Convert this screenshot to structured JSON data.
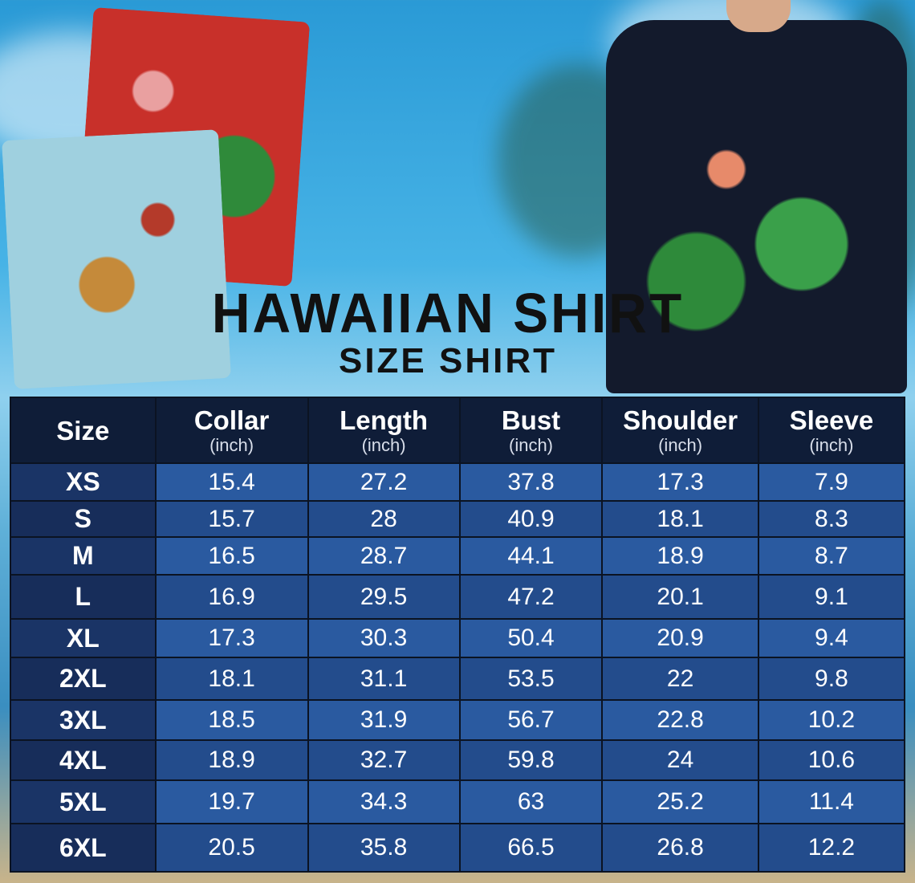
{
  "title": "HAWAIIAN SHIRT",
  "subtitle": "SIZE SHIRT",
  "table": {
    "headers": [
      {
        "label": "Size",
        "unit": ""
      },
      {
        "label": "Collar",
        "unit": "(inch)"
      },
      {
        "label": "Length",
        "unit": "(inch)"
      },
      {
        "label": "Bust",
        "unit": "(inch)"
      },
      {
        "label": "Shoulder",
        "unit": "(inch)"
      },
      {
        "label": "Sleeve",
        "unit": "(inch)"
      }
    ],
    "rows": [
      [
        "XS",
        "15.4",
        "27.2",
        "37.8",
        "17.3",
        "7.9"
      ],
      [
        "S",
        "15.7",
        "28",
        "40.9",
        "18.1",
        "8.3"
      ],
      [
        "M",
        "16.5",
        "28.7",
        "44.1",
        "18.9",
        "8.7"
      ],
      [
        "L",
        "16.9",
        "29.5",
        "47.2",
        "20.1",
        "9.1"
      ],
      [
        "XL",
        "17.3",
        "30.3",
        "50.4",
        "20.9",
        "9.4"
      ],
      [
        "2XL",
        "18.1",
        "31.1",
        "53.5",
        "22",
        "9.8"
      ],
      [
        "3XL",
        "18.5",
        "31.9",
        "56.7",
        "22.8",
        "10.2"
      ],
      [
        "4XL",
        "18.9",
        "32.7",
        "59.8",
        "24",
        "10.6"
      ],
      [
        "5XL",
        "19.7",
        "34.3",
        "63",
        "25.2",
        "11.4"
      ],
      [
        "6XL",
        "20.5",
        "35.8",
        "66.5",
        "26.8",
        "12.2"
      ]
    ]
  },
  "colors": {
    "header": "#0f1d38",
    "size_cell": "#172d5a",
    "value_cell": "#2a5aa0"
  }
}
